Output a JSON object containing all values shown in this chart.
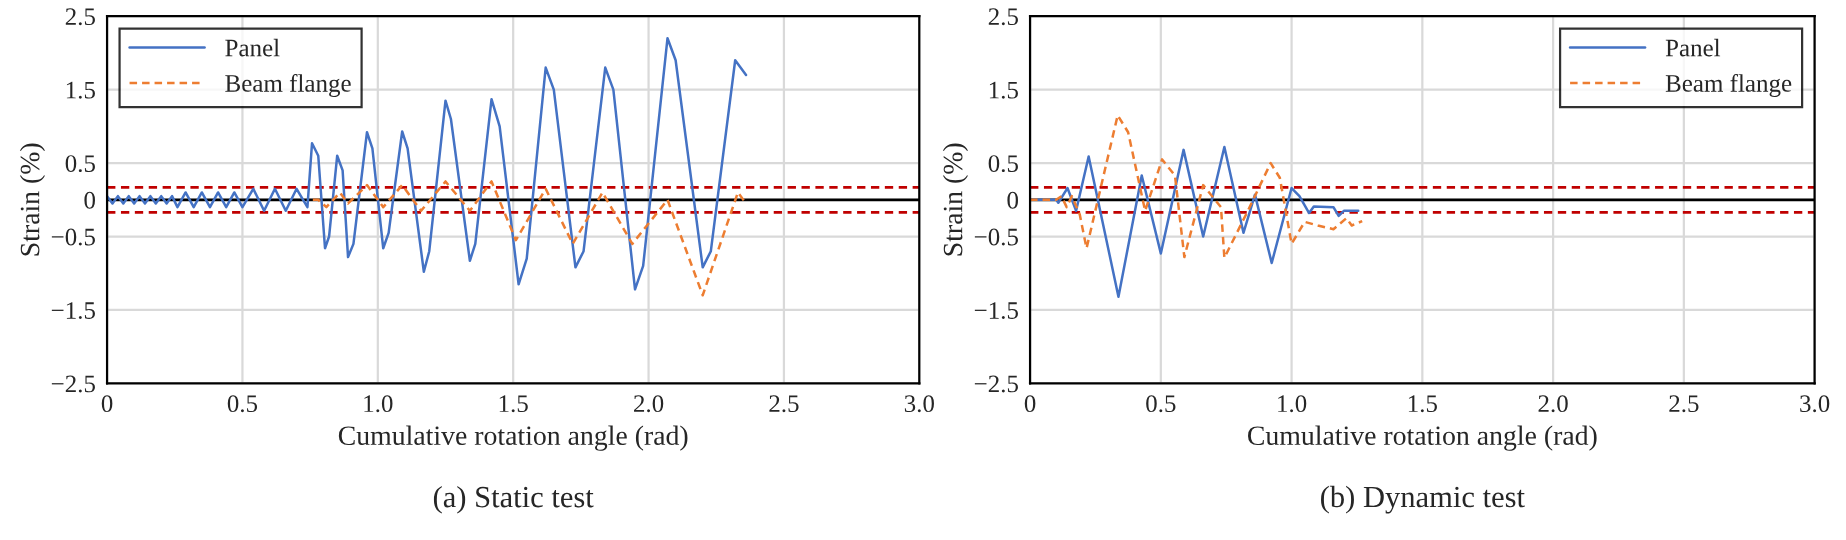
{
  "chart_data": [
    {
      "type": "line",
      "title": "(a) Static test",
      "xlabel": "Cumulative rotation angle (rad)",
      "ylabel": "Strain (%)",
      "xlim": [
        0,
        3.0
      ],
      "xticks": [
        0,
        0.5,
        {
          "value": 1.0,
          "label": "1.0"
        },
        1.5,
        {
          "value": 2.0,
          "label": "2.0"
        },
        2.5,
        {
          "value": 3.0,
          "label": "3.0"
        }
      ],
      "ylim": [
        -2.5,
        2.5
      ],
      "yticks": [
        {
          "value": -2.5,
          "label": "−2.5"
        },
        {
          "value": -1.5,
          "label": "−1.5"
        },
        {
          "value": -0.5,
          "label": "−0.5"
        },
        0,
        0.5,
        1.5,
        2.5
      ],
      "grid": true,
      "legend": "top left",
      "ref_lines": [
        {
          "axis": "y",
          "value": 0,
          "color": "#000000",
          "line_style": "solid"
        },
        {
          "axis": "y",
          "value": 0.17,
          "color": "#c00000",
          "line_style": "dashed"
        },
        {
          "axis": "y",
          "value": -0.17,
          "color": "#c00000",
          "line_style": "dashed"
        }
      ],
      "series": [
        {
          "name": "Panel",
          "color": "#4472c4",
          "line_style": "solid",
          "x": [
            0,
            0.02,
            0.04,
            0.06,
            0.08,
            0.1,
            0.12,
            0.14,
            0.16,
            0.18,
            0.2,
            0.22,
            0.24,
            0.26,
            0.29,
            0.32,
            0.35,
            0.38,
            0.41,
            0.44,
            0.47,
            0.5,
            0.54,
            0.58,
            0.62,
            0.66,
            0.7,
            0.74,
            0.757,
            0.78,
            0.805,
            0.82,
            0.85,
            0.87,
            0.89,
            0.91,
            0.96,
            0.98,
            1.02,
            1.04,
            1.09,
            1.11,
            1.17,
            1.19,
            1.25,
            1.27,
            1.34,
            1.36,
            1.42,
            1.45,
            1.52,
            1.55,
            1.62,
            1.65,
            1.73,
            1.76,
            1.84,
            1.87,
            1.95,
            1.98,
            2.07,
            2.1,
            2.2,
            2.23,
            2.32,
            2.36
          ],
          "values": [
            0.05,
            -0.05,
            0.05,
            -0.05,
            0.05,
            -0.05,
            0.05,
            -0.05,
            0.05,
            -0.05,
            0.05,
            -0.05,
            0.05,
            -0.1,
            0.1,
            -0.1,
            0.1,
            -0.1,
            0.1,
            -0.1,
            0.1,
            -0.1,
            0.15,
            -0.15,
            0.15,
            -0.15,
            0.15,
            -0.1,
            0.77,
            0.6,
            -0.66,
            -0.5,
            0.6,
            0.4,
            -0.78,
            -0.6,
            0.92,
            0.7,
            -0.66,
            -0.45,
            0.93,
            0.7,
            -0.98,
            -0.7,
            1.35,
            1.1,
            -0.83,
            -0.6,
            1.37,
            1.0,
            -1.15,
            -0.8,
            1.8,
            1.5,
            -0.92,
            -0.7,
            1.8,
            1.5,
            -1.22,
            -0.9,
            2.2,
            1.9,
            -0.92,
            -0.7,
            1.9,
            1.7
          ]
        },
        {
          "name": "Beam flange",
          "color": "#ed7d31",
          "line_style": "dashed",
          "x": [
            0.76,
            0.78,
            0.81,
            0.86,
            0.89,
            0.96,
            1.02,
            1.09,
            1.16,
            1.25,
            1.34,
            1.42,
            1.51,
            1.62,
            1.72,
            1.83,
            1.94,
            2.07,
            2.2,
            2.33,
            2.36
          ],
          "values": [
            0,
            0.0,
            -0.1,
            0.1,
            -0.05,
            0.2,
            -0.1,
            0.2,
            -0.15,
            0.25,
            -0.15,
            0.25,
            -0.55,
            0.15,
            -0.6,
            0.1,
            -0.6,
            0.0,
            -1.3,
            0.1,
            -0.05
          ]
        }
      ]
    },
    {
      "type": "line",
      "title": "(b) Dynamic test",
      "xlabel": "Cumulative rotation angle (rad)",
      "ylabel": "Strain (%)",
      "xlim": [
        0,
        3.0
      ],
      "xticks": [
        0,
        0.5,
        {
          "value": 1.0,
          "label": "1.0"
        },
        1.5,
        {
          "value": 2.0,
          "label": "2.0"
        },
        2.5,
        {
          "value": 3.0,
          "label": "3.0"
        }
      ],
      "ylim": [
        -2.5,
        2.5
      ],
      "yticks": [
        {
          "value": -2.5,
          "label": "−2.5"
        },
        {
          "value": -1.5,
          "label": "−1.5"
        },
        {
          "value": -0.5,
          "label": "−0.5"
        },
        0,
        0.5,
        1.5,
        2.5
      ],
      "grid": true,
      "legend": "top right",
      "ref_lines": [
        {
          "axis": "y",
          "value": 0,
          "color": "#000000",
          "line_style": "solid"
        },
        {
          "axis": "y",
          "value": 0.17,
          "color": "#c00000",
          "line_style": "dashed"
        },
        {
          "axis": "y",
          "value": -0.17,
          "color": "#c00000",
          "line_style": "dashed"
        }
      ],
      "series": [
        {
          "name": "Panel",
          "color": "#4472c4",
          "line_style": "solid",
          "x": [
            0,
            0.1,
            0.108,
            0.143,
            0.176,
            0.224,
            0.338,
            0.427,
            0.5,
            0.587,
            0.662,
            0.743,
            0.816,
            0.86,
            0.924,
            1.0,
            1.03,
            1.067,
            1.085,
            1.16,
            1.18,
            1.2,
            1.255
          ],
          "values": [
            0,
            0,
            -0.04,
            0.16,
            -0.15,
            0.59,
            -1.32,
            0.33,
            -0.73,
            0.68,
            -0.5,
            0.72,
            -0.45,
            0.07,
            -0.86,
            0.16,
            0.05,
            -0.18,
            -0.09,
            -0.1,
            -0.22,
            -0.15,
            -0.15
          ]
        },
        {
          "name": "Beam flange",
          "color": "#ed7d31",
          "line_style": "dashed",
          "x": [
            0,
            0.1,
            0.12,
            0.14,
            0.16,
            0.19,
            0.216,
            0.335,
            0.375,
            0.44,
            0.505,
            0.554,
            0.59,
            0.662,
            0.73,
            0.743,
            0.83,
            0.92,
            0.955,
            1.0,
            1.05,
            1.1,
            1.16,
            1.21,
            1.23,
            1.27
          ],
          "values": [
            0,
            0,
            0.05,
            -0.1,
            0.05,
            -0.2,
            -0.66,
            1.15,
            0.92,
            -0.15,
            0.55,
            0.33,
            -0.78,
            0.2,
            -0.1,
            -0.79,
            -0.17,
            0.5,
            0.3,
            -0.6,
            -0.3,
            -0.35,
            -0.4,
            -0.25,
            -0.35,
            -0.29
          ]
        }
      ]
    }
  ]
}
